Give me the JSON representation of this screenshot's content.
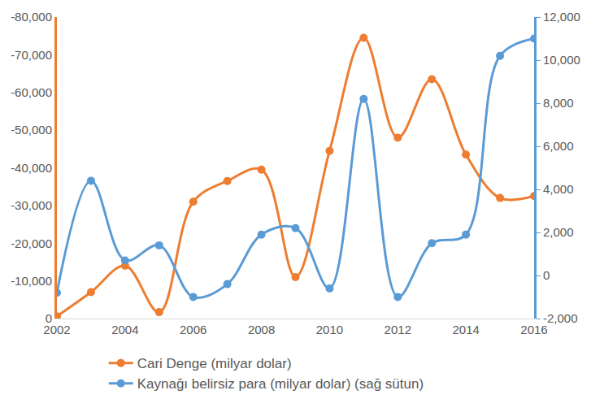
{
  "chart_data": {
    "type": "line",
    "x": [
      2002,
      2003,
      2004,
      2005,
      2006,
      2007,
      2008,
      2009,
      2010,
      2011,
      2012,
      2013,
      2014,
      2015,
      2016
    ],
    "series": [
      {
        "name": "Cari Denge (milyar dolar)",
        "color": "#ED7D31",
        "marker": "circle",
        "line_style": "smooth",
        "values": [
          -0.6,
          -7.0,
          -14.0,
          -1.7,
          -31.0,
          -36.5,
          -39.5,
          -11.0,
          -44.5,
          -74.5,
          -48.0,
          -63.5,
          -43.5,
          -32.0,
          -32.5
        ]
      },
      {
        "name": "Kaynağı belirsiz para (milyar dolar) (sağ sütun)",
        "color": "#5B9BD5",
        "marker": "circle",
        "line_style": "smooth",
        "axis": "y2",
        "values": [
          -0.8,
          4.4,
          0.7,
          1.4,
          -1.0,
          -0.4,
          1.9,
          2.2,
          -0.6,
          8.2,
          -1.0,
          1.5,
          1.9,
          10.2,
          11.0
        ]
      }
    ],
    "xlim": [
      2002,
      2016
    ],
    "xticks": [
      2002,
      2004,
      2006,
      2008,
      2010,
      2012,
      2014,
      2016
    ],
    "ylim": [
      0,
      -80
    ],
    "yticks": [
      0,
      {
        "value": -10,
        "label": "-10,000"
      },
      {
        "value": -20,
        "label": "-20,000"
      },
      {
        "value": -30,
        "label": "-30,000"
      },
      {
        "value": -40,
        "label": "-40,000"
      },
      {
        "value": -50,
        "label": "-50,000"
      },
      {
        "value": -60,
        "label": "-60,000"
      },
      {
        "value": -70,
        "label": "-70,000"
      },
      {
        "value": -80,
        "label": "-80,000"
      }
    ],
    "y2lim": [
      -2,
      12
    ],
    "y2ticks": [
      {
        "value": -2,
        "label": "-2,000"
      },
      0,
      {
        "value": 2,
        "label": "2,000"
      },
      {
        "value": 4,
        "label": "4,000"
      },
      {
        "value": 6,
        "label": "6,000"
      },
      {
        "value": 8,
        "label": "8,000"
      },
      {
        "value": 10,
        "label": "10,000"
      },
      {
        "value": 12,
        "label": "12,000"
      }
    ],
    "grid": false,
    "legend": "bottom"
  }
}
